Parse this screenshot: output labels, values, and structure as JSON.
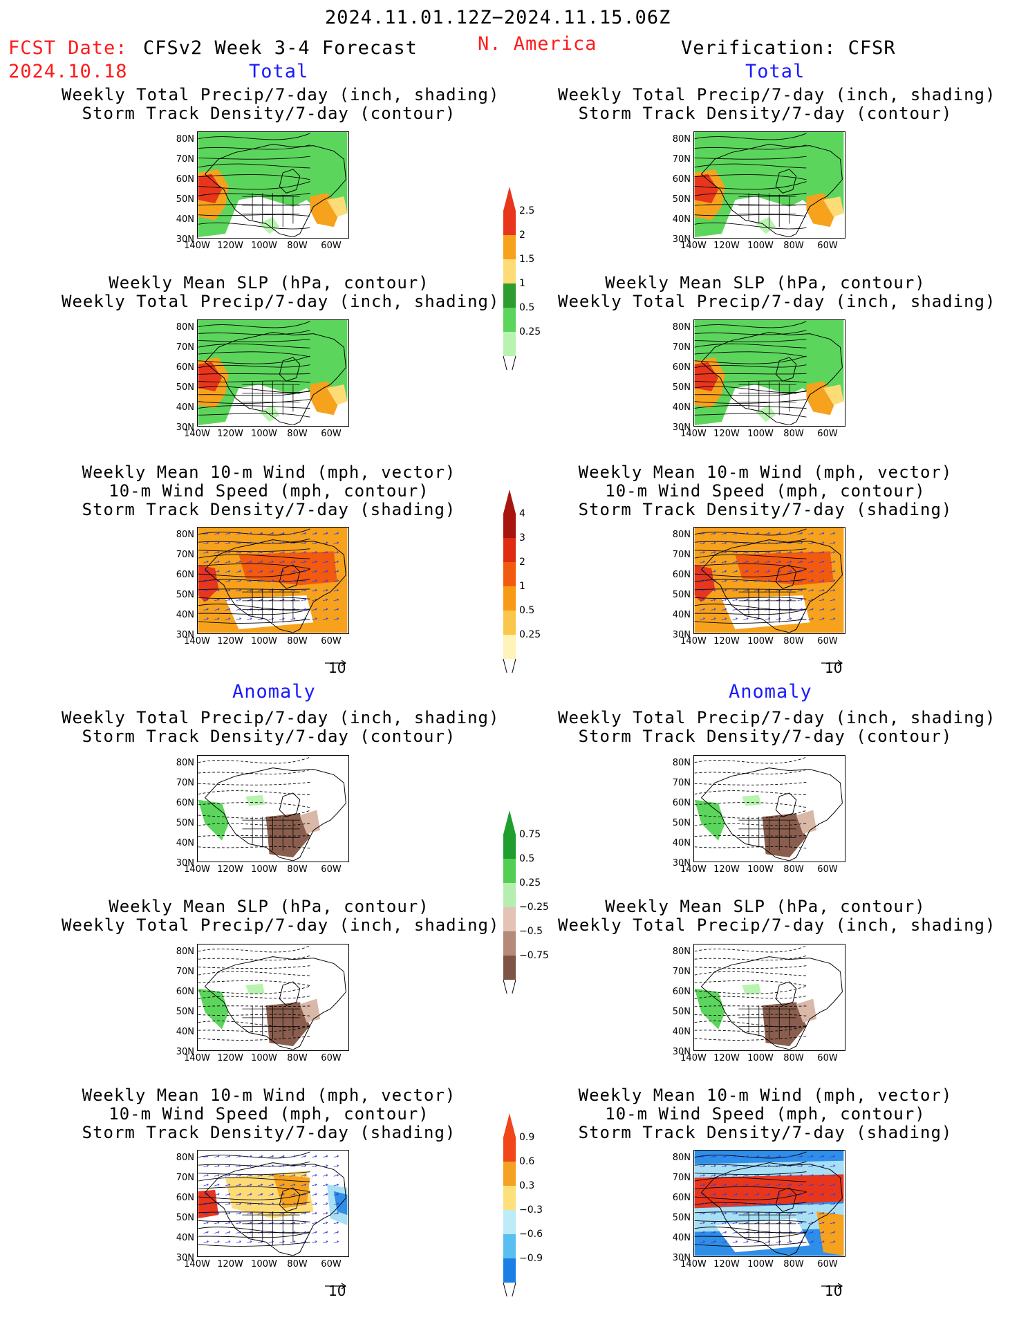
{
  "header": {
    "date_range": "2024.11.01.12Z−2024.11.15.06Z",
    "fcst_label": "FCST Date:",
    "fcst_date": "2024.10.18",
    "model": "CFSv2 Week 3-4 Forecast",
    "region": "N. America",
    "verification": "Verification: CFSR"
  },
  "sections": {
    "total": "Total",
    "anomaly": "Anomaly"
  },
  "panel_titles": {
    "precip_storm": [
      "Weekly Total Precip/7-day (inch, shading)",
      "Storm Track Density/7-day (contour)"
    ],
    "slp_precip": [
      "Weekly Mean SLP (hPa, contour)",
      "Weekly Total Precip/7-day (inch, shading)"
    ],
    "wind_storm": [
      "Weekly Mean 10-m Wind (mph, vector)",
      "10-m Wind Speed (mph, contour)",
      "Storm Track Density/7-day (shading)"
    ]
  },
  "axes": {
    "lat_ticks": [
      "80N",
      "70N",
      "60N",
      "50N",
      "40N",
      "30N"
    ],
    "lon_ticks": [
      "140W",
      "120W",
      "100W",
      "80W",
      "60W"
    ],
    "vector_ref": "10"
  },
  "colorbars": {
    "precip_total": {
      "labels": [
        "2.5",
        "2",
        "1.5",
        "1",
        "0.5",
        "0.25"
      ],
      "colors": [
        "#e8361d",
        "#f6a21c",
        "#fddc78",
        "#2e9c2e",
        "#5cd55c",
        "#b9f3b0"
      ]
    },
    "storm_total": {
      "labels": [
        "4",
        "3",
        "2",
        "1",
        "0.5",
        "0.25"
      ],
      "colors": [
        "#a8150f",
        "#de2b12",
        "#f25a0f",
        "#f79a16",
        "#fbc74b",
        "#fef3b8"
      ]
    },
    "precip_anom": {
      "labels": [
        "0.75",
        "0.5",
        "0.25",
        "−0.25",
        "−0.5",
        "−0.75"
      ],
      "colors": [
        "#1d9e2d",
        "#52cf52",
        "#b5efb0",
        "#e3c3b5",
        "#b58a78",
        "#7d5445"
      ]
    },
    "storm_anom": {
      "labels": [
        "0.9",
        "0.6",
        "0.3",
        "−0.3",
        "−0.6",
        "−0.9"
      ],
      "colors": [
        "#f0461a",
        "#f5a122",
        "#fce17a",
        "#bdebf7",
        "#58bff0",
        "#1b7fe6"
      ]
    }
  },
  "map_colors": {
    "green": "#5cd55c",
    "light_green": "#b9f3b0",
    "orange": "#f6a21c",
    "red": "#e8361d",
    "brown": "#8a5e4e",
    "tan": "#d9b8a8",
    "blue": "#2f8ee8",
    "light_blue": "#a7dff5",
    "yellow": "#fddc78"
  }
}
